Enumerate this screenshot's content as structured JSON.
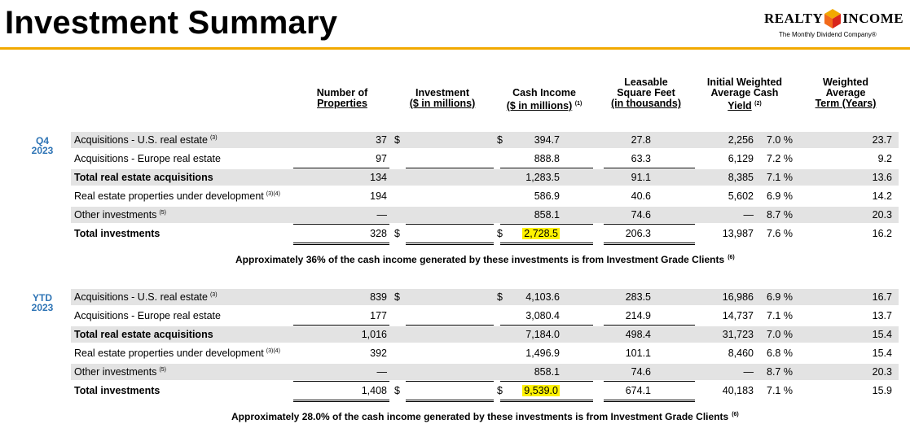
{
  "title": "Investment Summary",
  "logo": {
    "left": "REALTY",
    "right": "INCOME",
    "tagline": "The Monthly Dividend Company®"
  },
  "columns": {
    "properties": [
      "Number of",
      "Properties"
    ],
    "investment": [
      "Investment",
      "($ in millions)"
    ],
    "cash_income": [
      "Cash Income",
      "($ in millions)",
      "(1)"
    ],
    "leasable": [
      "Leasable",
      "Square Feet",
      "(in thousands)"
    ],
    "yield": [
      "Initial Weighted",
      "Average Cash",
      "Yield",
      "(2)"
    ],
    "term": [
      "Weighted",
      "Average",
      "Term (Years)"
    ]
  },
  "sections": [
    {
      "label": [
        "Q4",
        "2023"
      ],
      "rows": [
        {
          "label": "Acquisitions - U.S. real estate",
          "sup": "(3)",
          "bold": false,
          "shaded": true,
          "properties": "37",
          "inv_dollar": "$",
          "investment": "394.7",
          "ci_dollar": "$",
          "cash_income": "27.8",
          "sqft": "2,256",
          "yield": "7.0 %",
          "term": "23.7"
        },
        {
          "label": "Acquisitions - Europe real estate",
          "sup": "",
          "bold": false,
          "shaded": false,
          "properties": "97",
          "inv_dollar": "",
          "investment": "888.8",
          "ci_dollar": "",
          "cash_income": "63.3",
          "sqft": "6,129",
          "yield": "7.2 %",
          "term": "9.2"
        },
        {
          "label": "Total real estate acquisitions",
          "sup": "",
          "bold": true,
          "shaded": true,
          "properties": "134",
          "inv_dollar": "",
          "investment": "1,283.5",
          "ci_dollar": "",
          "cash_income": "91.1",
          "sqft": "8,385",
          "yield": "7.1 %",
          "term": "13.6"
        },
        {
          "label": "Real estate properties under development",
          "sup": "(3)(4)",
          "bold": false,
          "shaded": false,
          "properties": "194",
          "inv_dollar": "",
          "investment": "586.9",
          "ci_dollar": "",
          "cash_income": "40.6",
          "sqft": "5,602",
          "yield": "6.9 %",
          "term": "14.2"
        },
        {
          "label": "Other investments",
          "sup": "(5)",
          "bold": false,
          "shaded": true,
          "properties": "—",
          "inv_dollar": "",
          "investment": "858.1",
          "ci_dollar": "",
          "cash_income": "74.6",
          "sqft": "—",
          "yield": "8.7 %",
          "term": "20.3"
        },
        {
          "label": "Total investments",
          "sup": "",
          "bold": true,
          "shaded": false,
          "properties": "328",
          "inv_dollar": "$",
          "investment": "2,728.5",
          "ci_dollar": "$",
          "cash_income": "206.3",
          "sqft": "13,987",
          "yield": "7.6 %",
          "term": "16.2",
          "highlight": true
        }
      ],
      "note": "Approximately 36% of the cash income generated by these investments is from Investment Grade Clients",
      "note_sup": "(6)"
    },
    {
      "label": [
        "YTD",
        "2023"
      ],
      "rows": [
        {
          "label": "Acquisitions - U.S. real estate",
          "sup": "(3)",
          "bold": false,
          "shaded": true,
          "properties": "839",
          "inv_dollar": "$",
          "investment": "4,103.6",
          "ci_dollar": "$",
          "cash_income": "283.5",
          "sqft": "16,986",
          "yield": "6.9 %",
          "term": "16.7"
        },
        {
          "label": "Acquisitions - Europe real estate",
          "sup": "",
          "bold": false,
          "shaded": false,
          "properties": "177",
          "inv_dollar": "",
          "investment": "3,080.4",
          "ci_dollar": "",
          "cash_income": "214.9",
          "sqft": "14,737",
          "yield": "7.1 %",
          "term": "13.7"
        },
        {
          "label": "Total real estate acquisitions",
          "sup": "",
          "bold": true,
          "shaded": true,
          "properties": "1,016",
          "inv_dollar": "",
          "investment": "7,184.0",
          "ci_dollar": "",
          "cash_income": "498.4",
          "sqft": "31,723",
          "yield": "7.0 %",
          "term": "15.4"
        },
        {
          "label": "Real estate properties under development",
          "sup": "(3)(4)",
          "bold": false,
          "shaded": false,
          "properties": "392",
          "inv_dollar": "",
          "investment": "1,496.9",
          "ci_dollar": "",
          "cash_income": "101.1",
          "sqft": "8,460",
          "yield": "6.8 %",
          "term": "15.4"
        },
        {
          "label": "Other investments",
          "sup": "(5)",
          "bold": false,
          "shaded": true,
          "properties": "—",
          "inv_dollar": "",
          "investment": "858.1",
          "ci_dollar": "",
          "cash_income": "74.6",
          "sqft": "—",
          "yield": "8.7 %",
          "term": "20.3"
        },
        {
          "label": "Total investments",
          "sup": "",
          "bold": true,
          "shaded": false,
          "properties": "1,408",
          "inv_dollar": "$",
          "investment": "9,539.0",
          "ci_dollar": "$",
          "cash_income": "674.1",
          "sqft": "40,183",
          "yield": "7.1 %",
          "term": "15.9",
          "highlight": true
        }
      ],
      "note": "Approximately 28.0% of the cash income generated by these investments is from Investment Grade Clients",
      "note_sup": "(6)"
    }
  ],
  "colors": {
    "accent": "#F2A900",
    "section_label": "#2E74B5",
    "shade": "#E3E3E3",
    "highlight": "#FFF200",
    "logo_red": "#D9261C"
  }
}
